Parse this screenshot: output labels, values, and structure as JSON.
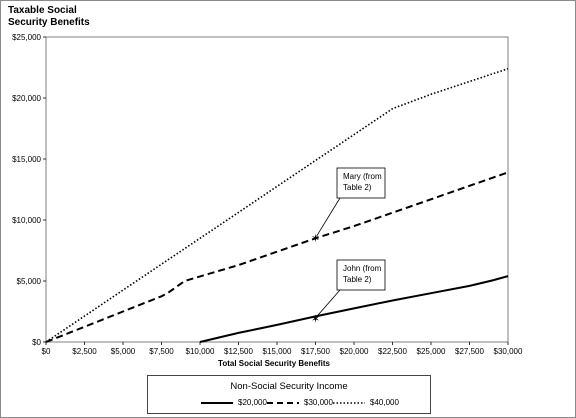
{
  "chart_data": {
    "type": "line",
    "title": "Taxable Social\nSecurity Benefits",
    "xlabel": "Total Social Security Benefits",
    "ylabel": "",
    "xlim": [
      0,
      30000
    ],
    "ylim": [
      0,
      25000
    ],
    "x_ticks": [
      "$0",
      "$2,500",
      "$5,000",
      "$7,500",
      "$10,000",
      "$12,500",
      "$15,000",
      "$17,500",
      "$20,000",
      "$22,500",
      "$25,000",
      "$27,500",
      "$30,000"
    ],
    "x_tick_values": [
      0,
      2500,
      5000,
      7500,
      10000,
      12500,
      15000,
      17500,
      20000,
      22500,
      25000,
      27500,
      30000
    ],
    "y_ticks": [
      "$0",
      "$5,000",
      "$10,000",
      "$15,000",
      "$20,000",
      "$25,000"
    ],
    "y_tick_values": [
      0,
      5000,
      10000,
      15000,
      20000,
      25000
    ],
    "grid": false,
    "legend_title": "Non-Social Security Income",
    "legend_position": "bottom",
    "series": [
      {
        "name": "$20,000",
        "style": "solid",
        "color": "#000000",
        "x": [
          10000,
          12500,
          15000,
          17500,
          20000,
          22500,
          25000,
          27500,
          29000,
          30000
        ],
        "y": [
          0,
          750,
          1400,
          2100,
          2750,
          3400,
          4000,
          4600,
          5050,
          5400
        ]
      },
      {
        "name": "$30,000",
        "style": "dashed",
        "color": "#000000",
        "x": [
          0,
          2500,
          5000,
          7500,
          8000,
          9000,
          12500,
          15000,
          17500,
          20000,
          22500,
          25000,
          27500,
          30000
        ],
        "y": [
          0,
          1250,
          2500,
          3750,
          4100,
          5000,
          6300,
          7400,
          8500,
          9500,
          10600,
          11700,
          12800,
          13900
        ]
      },
      {
        "name": "$40,000",
        "style": "dotted",
        "color": "#000000",
        "x": [
          0,
          2500,
          5000,
          7500,
          10000,
          12500,
          15000,
          17500,
          20000,
          22500,
          25000,
          27500,
          30000
        ],
        "y": [
          0,
          2125,
          4250,
          6375,
          8500,
          10625,
          12750,
          14875,
          17000,
          19125,
          20300,
          21350,
          22400
        ]
      }
    ],
    "annotations": [
      {
        "text": "Mary (from\nTable 2)",
        "point": [
          17500,
          8500
        ]
      },
      {
        "text": "John (from\nTable 2)",
        "point": [
          17500,
          1900
        ]
      }
    ]
  }
}
